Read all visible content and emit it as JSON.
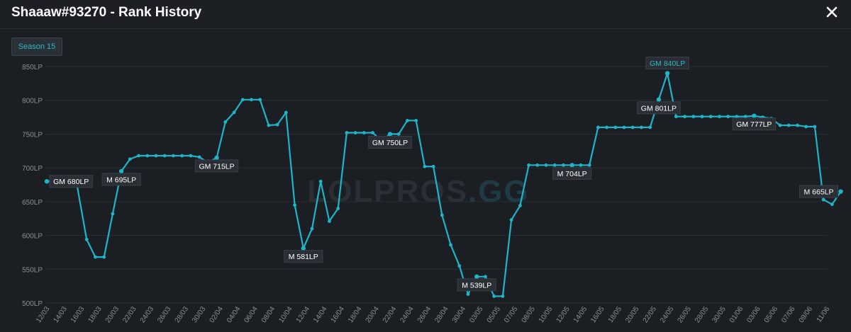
{
  "header": {
    "title": "Shaaaw#93270 - Rank History",
    "close_icon": "close-icon"
  },
  "season_button": {
    "label": "Season 15"
  },
  "colors": {
    "line": "#1fb5c9",
    "label_bg": "#2b2f35",
    "grid": "#2a2e34",
    "tick_text": "#8a8f96",
    "highlight_text": "#2bb8c8"
  },
  "watermark": {
    "part1": "LOLPROS",
    "part2": ".GG"
  },
  "chart_data": {
    "type": "line",
    "title": "",
    "xlabel": "",
    "ylabel": "",
    "ylim": [
      500,
      850
    ],
    "grid": true,
    "y_ticks": [
      {
        "value": 850,
        "label": "850LP"
      },
      {
        "value": 800,
        "label": "800LP"
      },
      {
        "value": 750,
        "label": "750LP"
      },
      {
        "value": 700,
        "label": "700LP"
      },
      {
        "value": 650,
        "label": "650LP"
      },
      {
        "value": 600,
        "label": "600LP"
      },
      {
        "value": 550,
        "label": "550LP"
      },
      {
        "value": 500,
        "label": "500LP"
      }
    ],
    "x_ticks": [
      "12/03",
      "14/03",
      "16/03",
      "18/03",
      "20/03",
      "22/03",
      "24/03",
      "26/03",
      "28/03",
      "30/03",
      "02/04",
      "04/04",
      "06/04",
      "08/04",
      "10/04",
      "12/04",
      "14/04",
      "16/04",
      "18/04",
      "20/04",
      "22/04",
      "24/04",
      "26/04",
      "28/04",
      "30/04",
      "03/05",
      "05/05",
      "07/05",
      "08/05",
      "10/05",
      "12/05",
      "14/05",
      "16/05",
      "18/05",
      "20/05",
      "22/05",
      "24/05",
      "26/05",
      "28/05",
      "30/05",
      "01/06",
      "03/06",
      "05/06",
      "07/06",
      "09/06",
      "11/06"
    ],
    "series": [
      {
        "points": [
          {
            "x": 0,
            "y": 680
          },
          {
            "x": 1.4,
            "y": 680
          },
          {
            "x": 1.7,
            "y": 680
          },
          {
            "x": 2.3,
            "y": 594
          },
          {
            "x": 2.8,
            "y": 568
          },
          {
            "x": 3.3,
            "y": 568
          },
          {
            "x": 3.8,
            "y": 632
          },
          {
            "x": 4.3,
            "y": 695
          },
          {
            "x": 4.8,
            "y": 713
          },
          {
            "x": 5.3,
            "y": 718
          },
          {
            "x": 5.8,
            "y": 718
          },
          {
            "x": 6.3,
            "y": 718
          },
          {
            "x": 6.8,
            "y": 718
          },
          {
            "x": 7.3,
            "y": 718
          },
          {
            "x": 7.8,
            "y": 718
          },
          {
            "x": 8.3,
            "y": 718
          },
          {
            "x": 8.8,
            "y": 716
          },
          {
            "x": 9.3,
            "y": 708
          },
          {
            "x": 9.8,
            "y": 715
          },
          {
            "x": 10.3,
            "y": 768
          },
          {
            "x": 10.8,
            "y": 782
          },
          {
            "x": 11.3,
            "y": 801
          },
          {
            "x": 11.8,
            "y": 801
          },
          {
            "x": 12.3,
            "y": 801
          },
          {
            "x": 12.8,
            "y": 763
          },
          {
            "x": 13.3,
            "y": 764
          },
          {
            "x": 13.8,
            "y": 782
          },
          {
            "x": 14.3,
            "y": 645
          },
          {
            "x": 14.8,
            "y": 581
          },
          {
            "x": 15.3,
            "y": 610
          },
          {
            "x": 15.8,
            "y": 680
          },
          {
            "x": 16.3,
            "y": 621
          },
          {
            "x": 16.8,
            "y": 640
          },
          {
            "x": 17.3,
            "y": 752
          },
          {
            "x": 17.8,
            "y": 752
          },
          {
            "x": 18.3,
            "y": 752
          },
          {
            "x": 18.8,
            "y": 752
          },
          {
            "x": 19.3,
            "y": 740
          },
          {
            "x": 19.8,
            "y": 750
          },
          {
            "x": 20.3,
            "y": 750
          },
          {
            "x": 20.8,
            "y": 770
          },
          {
            "x": 21.3,
            "y": 770
          },
          {
            "x": 21.8,
            "y": 702
          },
          {
            "x": 22.3,
            "y": 702
          },
          {
            "x": 22.8,
            "y": 630
          },
          {
            "x": 23.3,
            "y": 586
          },
          {
            "x": 23.8,
            "y": 555
          },
          {
            "x": 24.3,
            "y": 513
          },
          {
            "x": 24.8,
            "y": 539
          },
          {
            "x": 25.3,
            "y": 539
          },
          {
            "x": 25.8,
            "y": 510
          },
          {
            "x": 26.3,
            "y": 510
          },
          {
            "x": 26.8,
            "y": 623
          },
          {
            "x": 27.3,
            "y": 644
          },
          {
            "x": 27.8,
            "y": 704
          },
          {
            "x": 28.3,
            "y": 704
          },
          {
            "x": 28.8,
            "y": 704
          },
          {
            "x": 29.3,
            "y": 704
          },
          {
            "x": 29.8,
            "y": 704
          },
          {
            "x": 30.3,
            "y": 704
          },
          {
            "x": 30.8,
            "y": 704
          },
          {
            "x": 31.3,
            "y": 704
          },
          {
            "x": 31.8,
            "y": 760
          },
          {
            "x": 32.3,
            "y": 760
          },
          {
            "x": 32.8,
            "y": 760
          },
          {
            "x": 33.3,
            "y": 760
          },
          {
            "x": 33.8,
            "y": 760
          },
          {
            "x": 34.3,
            "y": 760
          },
          {
            "x": 34.8,
            "y": 760
          },
          {
            "x": 35.3,
            "y": 801
          },
          {
            "x": 35.8,
            "y": 840
          },
          {
            "x": 36.3,
            "y": 776
          },
          {
            "x": 36.8,
            "y": 776
          },
          {
            "x": 37.3,
            "y": 776
          },
          {
            "x": 37.8,
            "y": 776
          },
          {
            "x": 38.3,
            "y": 776
          },
          {
            "x": 38.8,
            "y": 776
          },
          {
            "x": 39.3,
            "y": 776
          },
          {
            "x": 39.8,
            "y": 776
          },
          {
            "x": 40.3,
            "y": 776
          },
          {
            "x": 40.8,
            "y": 777
          },
          {
            "x": 41.3,
            "y": 775
          },
          {
            "x": 41.8,
            "y": 773
          },
          {
            "x": 42.3,
            "y": 763
          },
          {
            "x": 42.8,
            "y": 763
          },
          {
            "x": 43.3,
            "y": 763
          },
          {
            "x": 43.8,
            "y": 761
          },
          {
            "x": 44.3,
            "y": 761
          },
          {
            "x": 44.8,
            "y": 653
          },
          {
            "x": 45.3,
            "y": 646
          },
          {
            "x": 45.8,
            "y": 665
          }
        ]
      }
    ],
    "annotations": [
      {
        "x": 0,
        "y": 680,
        "label": "GM 680LP",
        "side": "right",
        "highlight": false
      },
      {
        "x": 4.3,
        "y": 695,
        "label": "M 695LP",
        "side": "below",
        "highlight": false
      },
      {
        "x": 9.8,
        "y": 715,
        "label": "GM 715LP",
        "side": "below",
        "highlight": false
      },
      {
        "x": 14.8,
        "y": 581,
        "label": "M 581LP",
        "side": "below",
        "highlight": false
      },
      {
        "x": 19.8,
        "y": 750,
        "label": "GM 750LP",
        "side": "below",
        "highlight": false
      },
      {
        "x": 24.8,
        "y": 539,
        "label": "M 539LP",
        "side": "below",
        "highlight": false
      },
      {
        "x": 30.3,
        "y": 704,
        "label": "M 704LP",
        "side": "below",
        "highlight": false
      },
      {
        "x": 35.8,
        "y": 840,
        "label": "GM 840LP",
        "side": "above",
        "highlight": true
      },
      {
        "x": 35.3,
        "y": 801,
        "label": "GM 801LP",
        "side": "below",
        "highlight": false
      },
      {
        "x": 40.8,
        "y": 777,
        "label": "GM 777LP",
        "side": "below",
        "highlight": false
      },
      {
        "x": 45.8,
        "y": 665,
        "label": "M 665LP",
        "side": "left",
        "highlight": false
      }
    ]
  }
}
